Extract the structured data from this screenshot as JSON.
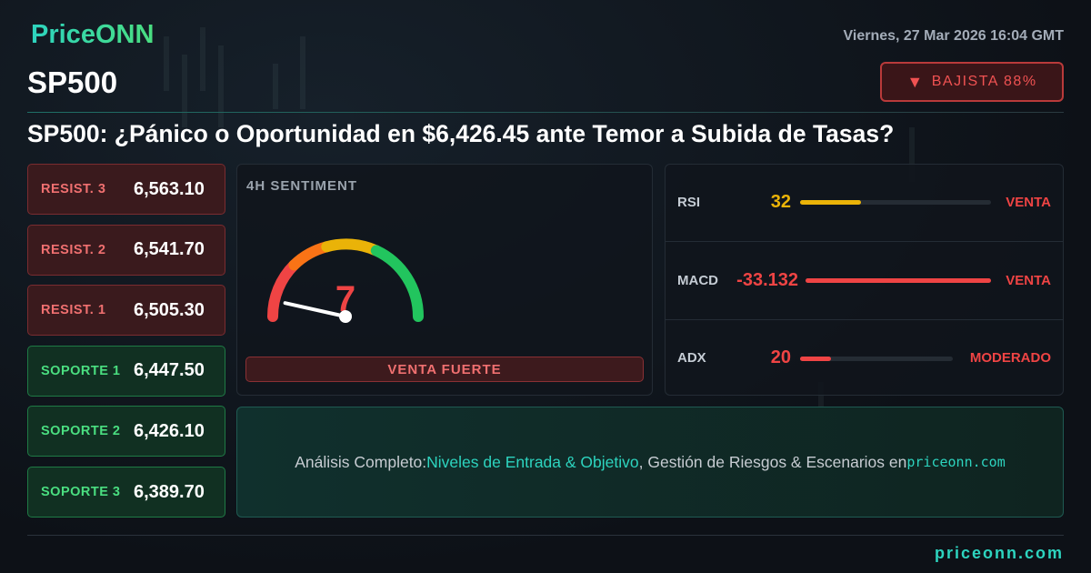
{
  "brand": "PriceONN",
  "datetime": "Viernes, 27 Mar 2026 16:04 GMT",
  "symbol": "SP500",
  "badge": "BAJISTA 88%",
  "headline": "SP500: ¿Pánico o Oportunidad en $6,426.45 ante Temor a Subida de Tasas?",
  "levels": [
    {
      "label": "RESIST. 3",
      "value": "6,563.10"
    },
    {
      "label": "RESIST. 2",
      "value": "6,541.70"
    },
    {
      "label": "RESIST. 1",
      "value": "6,505.30"
    },
    {
      "label": "SOPORTE 1",
      "value": "6,447.50"
    },
    {
      "label": "SOPORTE 2",
      "value": "6,426.10"
    },
    {
      "label": "SOPORTE 3",
      "value": "6,389.70"
    }
  ],
  "sentiment": {
    "title": "4H SENTIMENT",
    "value": 7,
    "signal": "VENTA FUERTE"
  },
  "indicators": [
    {
      "name": "RSI",
      "value": 32,
      "signal": "VENTA",
      "color": "#eab308"
    },
    {
      "name": "MACD",
      "value": -33.132,
      "signal": "VENTA",
      "color": "#ef4444"
    },
    {
      "name": "ADX",
      "value": 20,
      "signal": "MODERADO",
      "color": "#ef4444"
    }
  ],
  "cta": {
    "lead": "Análisis Completo:",
    "highlight": "Niveles de Entrada & Objetivo",
    "middle": ", Gestión de Riesgos & Escenarios en",
    "link": "priceonn.com"
  },
  "footer": "priceonn.com"
}
